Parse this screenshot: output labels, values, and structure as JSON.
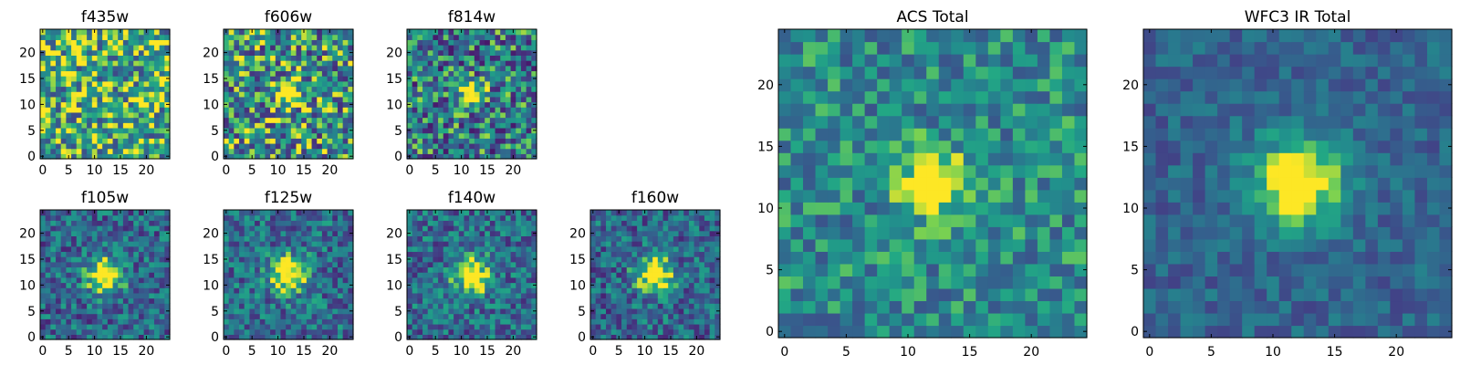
{
  "chart_data": [
    {
      "type": "heatmap",
      "title": "f435w",
      "xticks": [
        "0",
        "5",
        "10",
        "15",
        "20"
      ],
      "yticks": [
        "0",
        "5",
        "10",
        "15",
        "20"
      ],
      "xlim": [
        -0.5,
        24.5
      ],
      "ylim": [
        -0.5,
        24.5
      ],
      "grid_size": 25,
      "colormap": "viridis",
      "source_size": 0,
      "seed": 11,
      "noise": 0.42,
      "bias": 0.7
    },
    {
      "type": "heatmap",
      "title": "f606w",
      "xticks": [
        "0",
        "5",
        "10",
        "15",
        "20"
      ],
      "yticks": [
        "0",
        "5",
        "10",
        "15",
        "20"
      ],
      "xlim": [
        -0.5,
        24.5
      ],
      "ylim": [
        -0.5,
        24.5
      ],
      "grid_size": 25,
      "colormap": "viridis",
      "source_size": 1.6,
      "seed": 23,
      "noise": 0.45,
      "bias": 0.6
    },
    {
      "type": "heatmap",
      "title": "f814w",
      "xticks": [
        "0",
        "5",
        "10",
        "15",
        "20"
      ],
      "yticks": [
        "0",
        "5",
        "10",
        "15",
        "20"
      ],
      "xlim": [
        -0.5,
        24.5
      ],
      "ylim": [
        -0.5,
        24.5
      ],
      "grid_size": 25,
      "colormap": "viridis",
      "source_size": 1.6,
      "seed": 37,
      "noise": 0.42,
      "bias": 0.5
    },
    {
      "type": "heatmap",
      "title": "f105w",
      "xticks": [
        "0",
        "5",
        "10",
        "15",
        "20"
      ],
      "yticks": [
        "0",
        "5",
        "10",
        "15",
        "20"
      ],
      "xlim": [
        -0.5,
        24.5
      ],
      "ylim": [
        -0.5,
        24.5
      ],
      "grid_size": 25,
      "colormap": "viridis",
      "source_size": 2.4,
      "seed": 41,
      "noise": 0.3,
      "bias": 0.42
    },
    {
      "type": "heatmap",
      "title": "f125w",
      "xticks": [
        "0",
        "5",
        "10",
        "15",
        "20"
      ],
      "yticks": [
        "0",
        "5",
        "10",
        "15",
        "20"
      ],
      "xlim": [
        -0.5,
        24.5
      ],
      "ylim": [
        -0.5,
        24.5
      ],
      "grid_size": 25,
      "colormap": "viridis",
      "source_size": 2.4,
      "seed": 53,
      "noise": 0.3,
      "bias": 0.45
    },
    {
      "type": "heatmap",
      "title": "f140w",
      "xticks": [
        "0",
        "5",
        "10",
        "15",
        "20"
      ],
      "yticks": [
        "0",
        "5",
        "10",
        "15",
        "20"
      ],
      "xlim": [
        -0.5,
        24.5
      ],
      "ylim": [
        -0.5,
        24.5
      ],
      "grid_size": 25,
      "colormap": "viridis",
      "source_size": 2.4,
      "seed": 67,
      "noise": 0.3,
      "bias": 0.45
    },
    {
      "type": "heatmap",
      "title": "f160w",
      "xticks": [
        "0",
        "5",
        "10",
        "15",
        "20"
      ],
      "yticks": [
        "0",
        "5",
        "10",
        "15",
        "20"
      ],
      "xlim": [
        -0.5,
        24.5
      ],
      "ylim": [
        -0.5,
        24.5
      ],
      "grid_size": 25,
      "colormap": "viridis",
      "source_size": 2.5,
      "seed": 79,
      "noise": 0.3,
      "bias": 0.42
    },
    {
      "type": "heatmap",
      "title": "ACS Total",
      "xticks": [
        "0",
        "5",
        "10",
        "15",
        "20"
      ],
      "yticks": [
        "0",
        "5",
        "10",
        "15",
        "20"
      ],
      "xlim": [
        -0.5,
        24.5
      ],
      "ylim": [
        -0.5,
        24.5
      ],
      "grid_size": 25,
      "colormap": "viridis",
      "source_size": 1.7,
      "seed": 97,
      "noise": 0.26,
      "bias": 0.58
    },
    {
      "type": "heatmap",
      "title": "WFC3 IR Total",
      "xticks": [
        "0",
        "5",
        "10",
        "15",
        "20"
      ],
      "yticks": [
        "0",
        "5",
        "10",
        "15",
        "20"
      ],
      "xlim": [
        -0.5,
        24.5
      ],
      "ylim": [
        -0.5,
        24.5
      ],
      "grid_size": 25,
      "colormap": "viridis",
      "source_size": 2.6,
      "seed": 113,
      "noise": 0.16,
      "bias": 0.4
    }
  ]
}
